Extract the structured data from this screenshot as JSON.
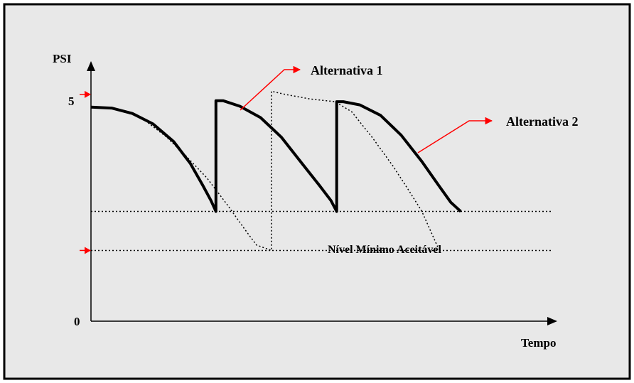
{
  "chart_data": {
    "type": "line",
    "title": "",
    "xlabel": "Tempo",
    "ylabel": "PSI",
    "y_ticks": [
      {
        "value": 0,
        "label": "0"
      },
      {
        "value": 5,
        "label": "5"
      }
    ],
    "xlim": [
      0,
      100
    ],
    "ylim": [
      0,
      5.5
    ],
    "grid": false,
    "background_color": "#e8e8e8",
    "arrow_color": "#ff0000",
    "reference_lines": [
      {
        "y": 2.42,
        "label": ""
      },
      {
        "y": 1.56,
        "label": "Nível Mínimo Aceitável"
      }
    ],
    "series": [
      {
        "name": "Alternativa 1",
        "style": "solid-thick",
        "color": "#000000",
        "points": [
          [
            0,
            4.72
          ],
          [
            5,
            4.7
          ],
          [
            10,
            4.58
          ],
          [
            15,
            4.35
          ],
          [
            20,
            3.96
          ],
          [
            24,
            3.48
          ],
          [
            27,
            3.0
          ],
          [
            29,
            2.66
          ],
          [
            30.2,
            2.42
          ],
          [
            30.2,
            4.86
          ],
          [
            32,
            4.86
          ],
          [
            36,
            4.74
          ],
          [
            41,
            4.49
          ],
          [
            46,
            4.06
          ],
          [
            51,
            3.48
          ],
          [
            55,
            3.02
          ],
          [
            58,
            2.66
          ],
          [
            59.4,
            2.42
          ],
          [
            59.4,
            4.84
          ],
          [
            61,
            4.84
          ],
          [
            65,
            4.77
          ],
          [
            70,
            4.54
          ],
          [
            75,
            4.1
          ],
          [
            80,
            3.52
          ],
          [
            84,
            3.0
          ],
          [
            87,
            2.62
          ],
          [
            89.4,
            2.42
          ]
        ]
      },
      {
        "name": "Alternativa 2",
        "style": "dotted",
        "color": "#000000",
        "points": [
          [
            0,
            4.72
          ],
          [
            5,
            4.7
          ],
          [
            12,
            4.5
          ],
          [
            18,
            4.08
          ],
          [
            23,
            3.64
          ],
          [
            28,
            3.16
          ],
          [
            33,
            2.56
          ],
          [
            37,
            2.05
          ],
          [
            40,
            1.68
          ],
          [
            43.6,
            1.56
          ],
          [
            43.6,
            5.07
          ],
          [
            47,
            5.0
          ],
          [
            53,
            4.9
          ],
          [
            59,
            4.84
          ],
          [
            63,
            4.62
          ],
          [
            68,
            4.05
          ],
          [
            73,
            3.42
          ],
          [
            77,
            2.86
          ],
          [
            80,
            2.42
          ],
          [
            84,
            1.6
          ],
          [
            84.5,
            1.56
          ]
        ]
      }
    ],
    "annotations": [
      {
        "text": "Alternativa 1",
        "series": "Alternativa 1"
      },
      {
        "text": "Alternativa 2",
        "series": "Alternativa 2"
      }
    ]
  }
}
